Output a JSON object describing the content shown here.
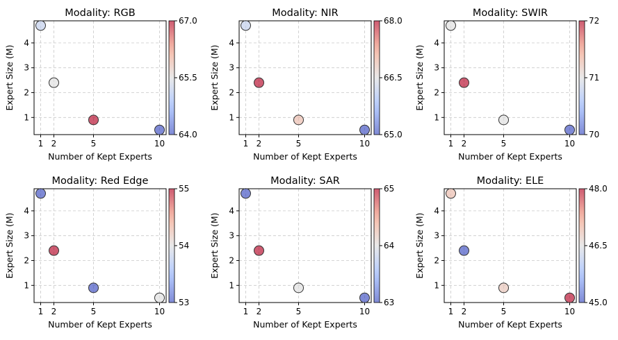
{
  "chart_data": [
    {
      "type": "scatter",
      "title": "Modality: RGB",
      "xlabel": "Number of Kept Experts",
      "ylabel": "Expert Size (M)",
      "x": [
        1,
        2,
        5,
        10
      ],
      "y": [
        4.7,
        2.4,
        0.9,
        0.5
      ],
      "color_values": [
        65.2,
        65.5,
        67.0,
        64.0
      ],
      "color_range": [
        64.0,
        67.0
      ],
      "colorbar_ticks": [
        "64.0",
        "65.5",
        "67.0"
      ],
      "xticks": [
        "1",
        "2",
        "5",
        "10"
      ],
      "yticks": [
        "1",
        "2",
        "3",
        "4"
      ],
      "xlim": [
        0.5,
        10.5
      ],
      "ylim": [
        0.31,
        4.89
      ],
      "grid": true,
      "colormap": "coolwarm"
    },
    {
      "type": "scatter",
      "title": "Modality: NIR",
      "xlabel": "Number of Kept Experts",
      "ylabel": "Expert Size (M)",
      "x": [
        1,
        2,
        5,
        10
      ],
      "y": [
        4.7,
        2.4,
        0.9,
        0.5
      ],
      "color_values": [
        66.2,
        68.0,
        66.9,
        65.0
      ],
      "color_range": [
        65.0,
        68.0
      ],
      "colorbar_ticks": [
        "65.0",
        "66.5",
        "68.0"
      ],
      "xticks": [
        "1",
        "2",
        "5",
        "10"
      ],
      "yticks": [
        "1",
        "2",
        "3",
        "4"
      ],
      "xlim": [
        0.5,
        10.5
      ],
      "ylim": [
        0.31,
        4.89
      ],
      "grid": true,
      "colormap": "coolwarm"
    },
    {
      "type": "scatter",
      "title": "Modality: SWIR",
      "xlabel": "Number of Kept Experts",
      "ylabel": "Expert Size (M)",
      "x": [
        1,
        2,
        5,
        10
      ],
      "y": [
        4.7,
        2.4,
        0.9,
        0.5
      ],
      "color_values": [
        71.0,
        72.0,
        71.0,
        70.0
      ],
      "color_range": [
        70,
        72
      ],
      "colorbar_ticks": [
        "70",
        "71",
        "72"
      ],
      "xticks": [
        "1",
        "2",
        "5",
        "10"
      ],
      "yticks": [
        "1",
        "2",
        "3",
        "4"
      ],
      "xlim": [
        0.5,
        10.5
      ],
      "ylim": [
        0.31,
        4.89
      ],
      "grid": true,
      "colormap": "coolwarm"
    },
    {
      "type": "scatter",
      "title": "Modality: Red Edge",
      "xlabel": "Number of Kept Experts",
      "ylabel": "Expert Size (M)",
      "x": [
        1,
        2,
        5,
        10
      ],
      "y": [
        4.7,
        2.4,
        0.9,
        0.5
      ],
      "color_values": [
        53.0,
        55.0,
        53.0,
        54.0
      ],
      "color_range": [
        53,
        55
      ],
      "colorbar_ticks": [
        "53",
        "54",
        "55"
      ],
      "xticks": [
        "1",
        "2",
        "5",
        "10"
      ],
      "yticks": [
        "1",
        "2",
        "3",
        "4"
      ],
      "xlim": [
        0.5,
        10.5
      ],
      "ylim": [
        0.31,
        4.89
      ],
      "grid": true,
      "colormap": "coolwarm"
    },
    {
      "type": "scatter",
      "title": "Modality: SAR",
      "xlabel": "Number of Kept Experts",
      "ylabel": "Expert Size (M)",
      "x": [
        1,
        2,
        5,
        10
      ],
      "y": [
        4.7,
        2.4,
        0.9,
        0.5
      ],
      "color_values": [
        63.0,
        65.0,
        64.0,
        63.0
      ],
      "color_range": [
        63,
        65
      ],
      "colorbar_ticks": [
        "63",
        "64",
        "65"
      ],
      "xticks": [
        "1",
        "2",
        "5",
        "10"
      ],
      "yticks": [
        "1",
        "2",
        "3",
        "4"
      ],
      "xlim": [
        0.5,
        10.5
      ],
      "ylim": [
        0.31,
        4.89
      ],
      "grid": true,
      "colormap": "coolwarm"
    },
    {
      "type": "scatter",
      "title": "Modality: ELE",
      "xlabel": "Number of Kept Experts",
      "ylabel": "Expert Size (M)",
      "x": [
        1,
        2,
        5,
        10
      ],
      "y": [
        4.7,
        2.4,
        0.9,
        0.5
      ],
      "color_values": [
        46.9,
        45.0,
        46.8,
        48.0
      ],
      "color_range": [
        45.0,
        48.0
      ],
      "colorbar_ticks": [
        "45.0",
        "46.5",
        "48.0"
      ],
      "xticks": [
        "1",
        "2",
        "5",
        "10"
      ],
      "yticks": [
        "1",
        "2",
        "3",
        "4"
      ],
      "xlim": [
        0.5,
        10.5
      ],
      "ylim": [
        0.31,
        4.89
      ],
      "grid": true,
      "colormap": "coolwarm"
    }
  ]
}
